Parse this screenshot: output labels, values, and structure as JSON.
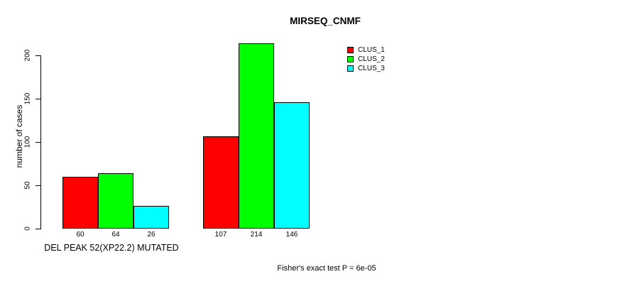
{
  "title": "MIRSEQ_CNMF",
  "chart_data": {
    "type": "bar",
    "title": "MIRSEQ_CNMF",
    "ylabel": "number of cases",
    "xlabel": "DEL PEAK 52(XP22.2) MUTATED",
    "annotation": "Fisher's exact test P = 6e-05",
    "ylim": [
      0,
      220
    ],
    "yticks": [
      0,
      50,
      100,
      150,
      200
    ],
    "grid": false,
    "series": [
      {
        "name": "CLUS_1",
        "color": "#FF0000",
        "values": [
          60,
          107
        ]
      },
      {
        "name": "CLUS_2",
        "color": "#00FF00",
        "values": [
          64,
          214
        ]
      },
      {
        "name": "CLUS_3",
        "color": "#00FFFF",
        "values": [
          26,
          146
        ]
      }
    ],
    "bar_value_labels": [
      [
        60,
        64,
        26
      ],
      [
        107,
        214,
        146
      ]
    ],
    "legend": {
      "position": "top-right",
      "entries": [
        {
          "label": "CLUS_1",
          "color": "#FF0000"
        },
        {
          "label": "CLUS_2",
          "color": "#00FF00"
        },
        {
          "label": "CLUS_3",
          "color": "#00FFFF"
        }
      ]
    }
  }
}
